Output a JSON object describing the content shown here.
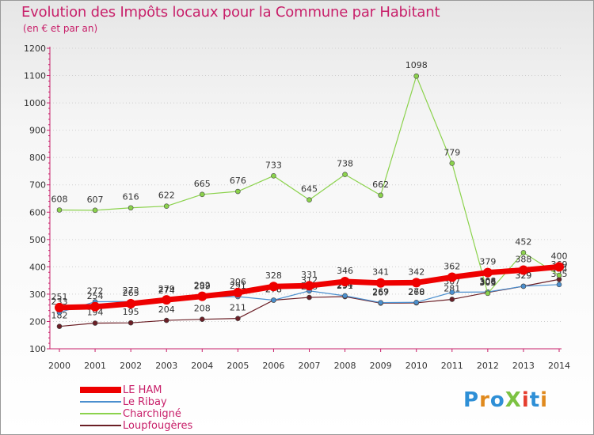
{
  "title": "Evolution des Impôts locaux pour la Commune par Habitant",
  "subtitle": "(en € et par an)",
  "logo": {
    "text": "ProXiti",
    "colors": [
      "#2e8fd6",
      "#e08a1e",
      "#2e8fd6",
      "#7cc242",
      "#e53d2e",
      "#2e8fd6",
      "#e08a1e"
    ]
  },
  "chart_data": {
    "type": "line",
    "title": "Evolution des Impôts locaux pour la Commune par Habitant",
    "subtitle": "(en € et par an)",
    "x": [
      "2000",
      "2001",
      "2002",
      "2003",
      "2004",
      "2005",
      "2006",
      "2007",
      "2008",
      "2009",
      "2010",
      "2011",
      "2012",
      "2013",
      "2014"
    ],
    "ylim": [
      100,
      1200
    ],
    "yticks": [
      "100",
      "200",
      "300",
      "400",
      "500",
      "600",
      "700",
      "800",
      "900",
      "1000",
      "1100",
      "1200"
    ],
    "series": [
      {
        "name": "Loupfougères",
        "color": "#6b1f26",
        "width": 1.2,
        "marker": 3,
        "values": [
          182,
          194,
          195,
          204,
          208,
          211,
          278,
          288,
          291,
          267,
          268,
          281,
          306,
          329,
          354
        ],
        "labels": [
          "182",
          "194",
          "195",
          "204",
          "208",
          "211",
          "278",
          "288",
          "291",
          "267",
          "268",
          "281",
          "306",
          "329",
          "354"
        ]
      },
      {
        "name": "Le Ribay",
        "color": "#4b8fce",
        "width": 1.2,
        "marker": 3,
        "values": [
          233,
          272,
          273,
          274,
          289,
          291,
          278,
          312,
          294,
          269,
          270,
          307,
          308,
          329,
          335
        ],
        "labels": [
          "233",
          "272",
          "273",
          "274",
          "289",
          "291",
          "278",
          "312",
          "294",
          "269",
          "270",
          "307",
          "308",
          "329",
          "335"
        ]
      },
      {
        "name": "Charchigné",
        "color": "#8bd24c",
        "width": 1.2,
        "marker": 3,
        "values": [
          608,
          607,
          616,
          622,
          665,
          676,
          733,
          645,
          738,
          662,
          1098,
          779,
          303,
          452,
          369
        ],
        "labels": [
          "608",
          "607",
          "616",
          "622",
          "665",
          "676",
          "733",
          "645",
          "738",
          "662",
          "1098",
          "779",
          "303",
          "452",
          "369"
        ]
      },
      {
        "name": "LE HAM",
        "color": "#ee0000",
        "width": 7,
        "marker": 6,
        "values": [
          251,
          254,
          265,
          279,
          292,
          306,
          328,
          331,
          346,
          341,
          342,
          362,
          379,
          388,
          400
        ],
        "labels": [
          "251",
          "254",
          "265",
          "279",
          "292",
          "306",
          "328",
          "331",
          "346",
          "341",
          "342",
          "362",
          "379",
          "388",
          "400"
        ]
      }
    ],
    "legend": [
      "LE HAM",
      "Le Ribay",
      "Charchigné",
      "Loupfougères"
    ],
    "legend_position": "bottom-left"
  }
}
